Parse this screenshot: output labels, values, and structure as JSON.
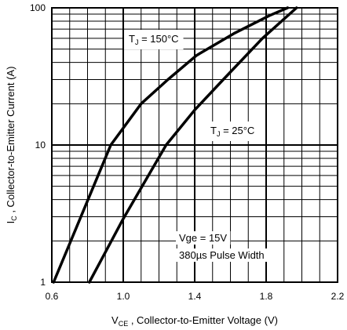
{
  "chart_data": {
    "type": "line",
    "xlabel": {
      "symbol": "V",
      "sub": "CE",
      "text": " , Collector-to-Emitter Voltage (V)"
    },
    "ylabel": {
      "symbol": "I",
      "sub": "C",
      "text": " , Collector-to-Emitter Current (A)"
    },
    "x_range": [
      0.6,
      2.2
    ],
    "y_range": [
      1,
      100
    ],
    "y_scale": "log",
    "grid": true,
    "x_ticks": [
      "0.6",
      "1.0",
      "1.4",
      "1.8",
      "2.2"
    ],
    "x_tick_values": [
      0.6,
      1.0,
      1.4,
      1.8,
      2.2
    ],
    "y_ticks": [
      "1",
      "10",
      "100"
    ],
    "y_tick_values": [
      1,
      10,
      100
    ],
    "series": [
      {
        "name": "T_J = 150°C",
        "label": {
          "pre": "T",
          "sub": "J",
          "post": " = 150°C"
        },
        "x": [
          0.61,
          0.93,
          1.1,
          1.25,
          1.41,
          1.62,
          1.82,
          1.92
        ],
        "y": [
          1,
          10,
          20,
          30,
          45,
          65,
          88,
          100
        ]
      },
      {
        "name": "T_J = 25°C",
        "label": {
          "pre": "T",
          "sub": "J",
          "post": " = 25°C"
        },
        "x": [
          0.81,
          1.0,
          1.24,
          1.4,
          1.56,
          1.78,
          1.97
        ],
        "y": [
          1,
          2.9,
          10,
          18,
          30,
          60,
          100
        ]
      }
    ],
    "annotations": [
      "Vge = 15V",
      "380µs Pulse Width"
    ]
  }
}
